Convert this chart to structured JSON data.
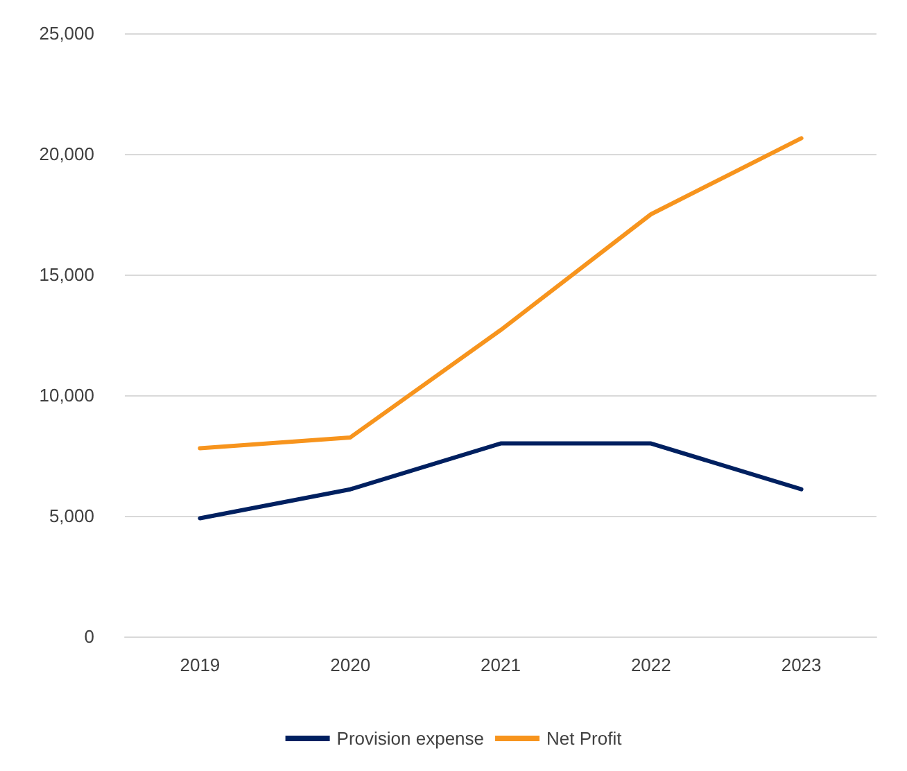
{
  "chart_data": {
    "type": "line",
    "categories": [
      "2019",
      "2020",
      "2021",
      "2022",
      "2023"
    ],
    "series": [
      {
        "name": "Provision expense",
        "color": "#002060",
        "values": [
          4900,
          6100,
          8000,
          8000,
          6100
        ]
      },
      {
        "name": "Net Profit",
        "color": "#f7941d",
        "values": [
          7800,
          8250,
          12700,
          17500,
          20650
        ]
      }
    ],
    "ylim": [
      0,
      25000
    ],
    "yticks": [
      0,
      {
        "value": 5000,
        "label": "5,000"
      },
      {
        "value": 10000,
        "label": "10,000"
      },
      {
        "value": 15000,
        "label": "15,000"
      },
      {
        "value": 20000,
        "label": "20,000"
      },
      {
        "value": 25000,
        "label": "25,000"
      }
    ],
    "grid": "y",
    "legend": "bottom",
    "marker": "none",
    "line_style": "solid"
  }
}
